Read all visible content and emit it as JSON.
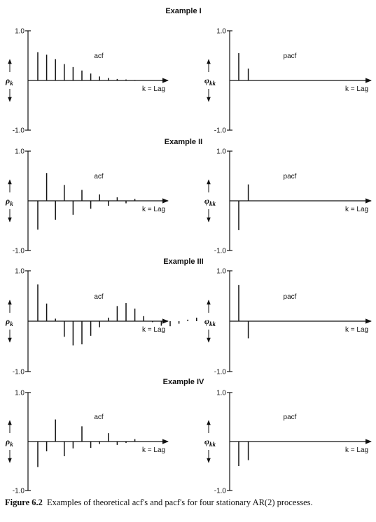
{
  "figure": {
    "caption_label": "Figure 6.2",
    "caption_text": "Examples of theoretical acf's and pacf's for four stationary AR(2) processes."
  },
  "chart_data": [
    {
      "type": "bar",
      "example": "Example I",
      "panel": "acf",
      "ylabel": "ρk",
      "xlabel": "k = Lag",
      "ylim": [
        -1.0,
        1.0
      ],
      "yticks": [
        "1.0",
        "-1.0"
      ],
      "x": [
        1,
        2,
        3,
        4,
        5,
        6,
        7,
        8,
        9,
        10,
        11,
        12
      ],
      "values": [
        0.57,
        0.52,
        0.43,
        0.33,
        0.27,
        0.2,
        0.14,
        0.08,
        0.05,
        0.03,
        0.02,
        0.01
      ]
    },
    {
      "type": "bar",
      "example": "Example I",
      "panel": "pacf",
      "ylabel": "φkk",
      "xlabel": "k = Lag",
      "ylim": [
        -1.0,
        1.0
      ],
      "yticks": [
        "1.0",
        "-1.0"
      ],
      "x": [
        1,
        2
      ],
      "values": [
        0.55,
        0.24
      ]
    },
    {
      "type": "bar",
      "example": "Example II",
      "panel": "acf",
      "ylabel": "ρk",
      "xlabel": "k = Lag",
      "ylim": [
        -1.0,
        1.0
      ],
      "yticks": [
        "1.0",
        "-1.0"
      ],
      "x": [
        1,
        2,
        3,
        4,
        5,
        6,
        7,
        8,
        9,
        10,
        11,
        12
      ],
      "values": [
        -0.58,
        0.56,
        -0.38,
        0.32,
        -0.28,
        0.22,
        -0.16,
        0.13,
        -0.1,
        0.07,
        -0.05,
        0.04
      ]
    },
    {
      "type": "bar",
      "example": "Example II",
      "panel": "pacf",
      "ylabel": "φkk",
      "xlabel": "k = Lag",
      "ylim": [
        -1.0,
        1.0
      ],
      "yticks": [
        "1.0",
        "-1.0"
      ],
      "x": [
        1,
        2
      ],
      "values": [
        -0.59,
        0.33
      ]
    },
    {
      "type": "bar",
      "example": "Example III",
      "panel": "acf",
      "ylabel": "ρk",
      "xlabel": "k = Lag",
      "ylim": [
        -1.0,
        1.0
      ],
      "yticks": [
        "1.0",
        "-1.0"
      ],
      "x": [
        1,
        2,
        3,
        4,
        5,
        6,
        7,
        8,
        9,
        10,
        11,
        12,
        13,
        14,
        15,
        16,
        17,
        18,
        19
      ],
      "values": [
        0.73,
        0.35,
        0.05,
        -0.31,
        -0.48,
        -0.46,
        -0.29,
        -0.12,
        0.07,
        0.3,
        0.36,
        0.25,
        0.1,
        -0.02,
        -0.09,
        -0.1,
        -0.05,
        0.03,
        0.07
      ]
    },
    {
      "type": "bar",
      "example": "Example III",
      "panel": "pacf",
      "ylabel": "φkk",
      "xlabel": "k = Lag",
      "ylim": [
        -1.0,
        1.0
      ],
      "yticks": [
        "1.0",
        "-1.0"
      ],
      "x": [
        1,
        2
      ],
      "values": [
        0.72,
        -0.34
      ]
    },
    {
      "type": "bar",
      "example": "Example IV",
      "panel": "acf",
      "ylabel": "ρk",
      "xlabel": "k = Lag",
      "ylim": [
        -1.0,
        1.0
      ],
      "yticks": [
        "1.0",
        "-1.0"
      ],
      "x": [
        1,
        2,
        3,
        4,
        5,
        6,
        7,
        8,
        9,
        10,
        11,
        12
      ],
      "values": [
        -0.52,
        -0.2,
        0.45,
        -0.3,
        -0.14,
        0.31,
        -0.13,
        -0.05,
        0.17,
        -0.07,
        -0.03,
        0.05
      ]
    },
    {
      "type": "bar",
      "example": "Example IV",
      "panel": "pacf",
      "ylabel": "φkk",
      "xlabel": "k = Lag",
      "ylim": [
        -1.0,
        1.0
      ],
      "yticks": [
        "1.0",
        "-1.0"
      ],
      "x": [
        1,
        2
      ],
      "values": [
        -0.5,
        -0.38
      ]
    }
  ]
}
